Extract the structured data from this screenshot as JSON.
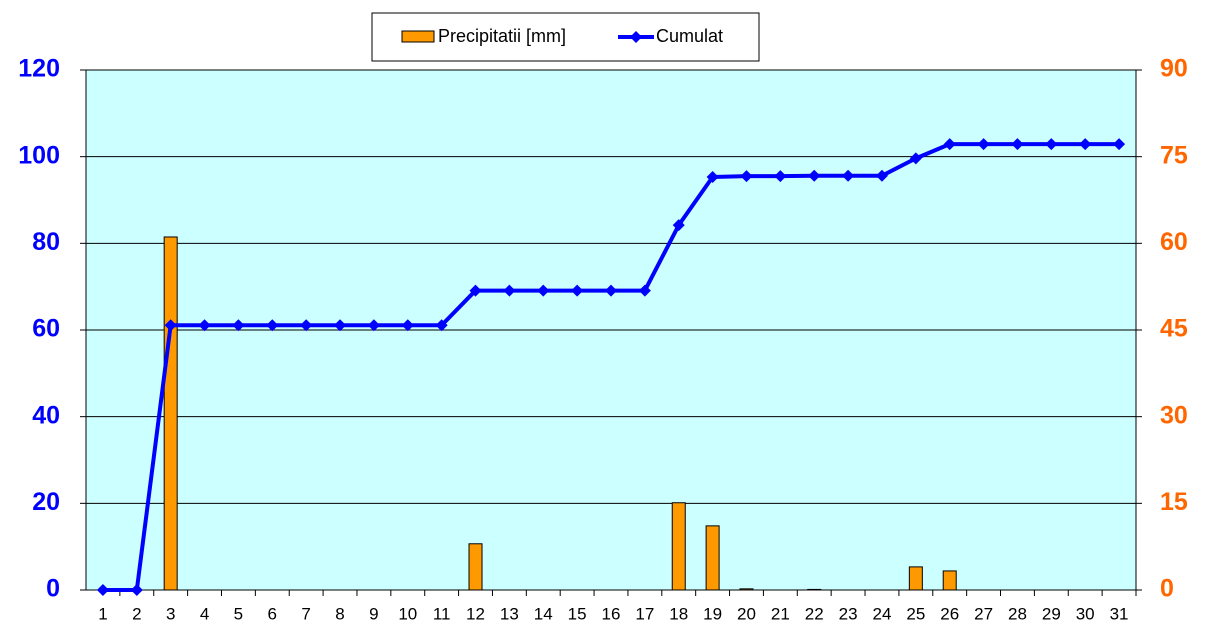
{
  "chart_data": {
    "type": "combo",
    "categories": [
      "1",
      "2",
      "3",
      "4",
      "5",
      "6",
      "7",
      "8",
      "9",
      "10",
      "11",
      "12",
      "13",
      "14",
      "15",
      "16",
      "17",
      "18",
      "19",
      "20",
      "21",
      "22",
      "23",
      "24",
      "25",
      "26",
      "27",
      "28",
      "29",
      "30",
      "31"
    ],
    "series": [
      {
        "name": "Precipitatii [mm]",
        "type": "bar",
        "axis": "y2",
        "color": "#ff9900",
        "values": [
          0,
          0,
          61.1,
          0,
          0,
          0,
          0,
          0,
          0,
          0,
          0,
          8.0,
          0,
          0,
          0,
          0,
          0,
          15.1,
          11.1,
          0.2,
          0,
          0.1,
          0,
          0,
          4.0,
          3.3,
          0,
          0,
          0,
          0,
          0
        ]
      },
      {
        "name": "Cumulat",
        "type": "line",
        "color": "#0000ff",
        "values": [
          0,
          0,
          61.1,
          61.1,
          61.1,
          61.1,
          61.1,
          61.1,
          61.1,
          61.1,
          61.1,
          69.1,
          69.1,
          69.1,
          69.1,
          69.1,
          69.1,
          84.2,
          95.3,
          95.5,
          95.5,
          95.6,
          95.6,
          95.6,
          99.6,
          102.9,
          102.9,
          102.9,
          102.9,
          102.9,
          102.9
        ]
      }
    ],
    "ylim": [
      0,
      120
    ],
    "yticks": [
      0,
      20,
      40,
      60,
      80,
      100,
      120
    ],
    "y_color": "#0000ff",
    "y2lim": [
      0,
      90
    ],
    "y2ticks": [
      0,
      15,
      30,
      45,
      60,
      75,
      90
    ],
    "y2_color": "#ff6600",
    "grid": true,
    "background": "#ccffff",
    "legend": "top"
  }
}
